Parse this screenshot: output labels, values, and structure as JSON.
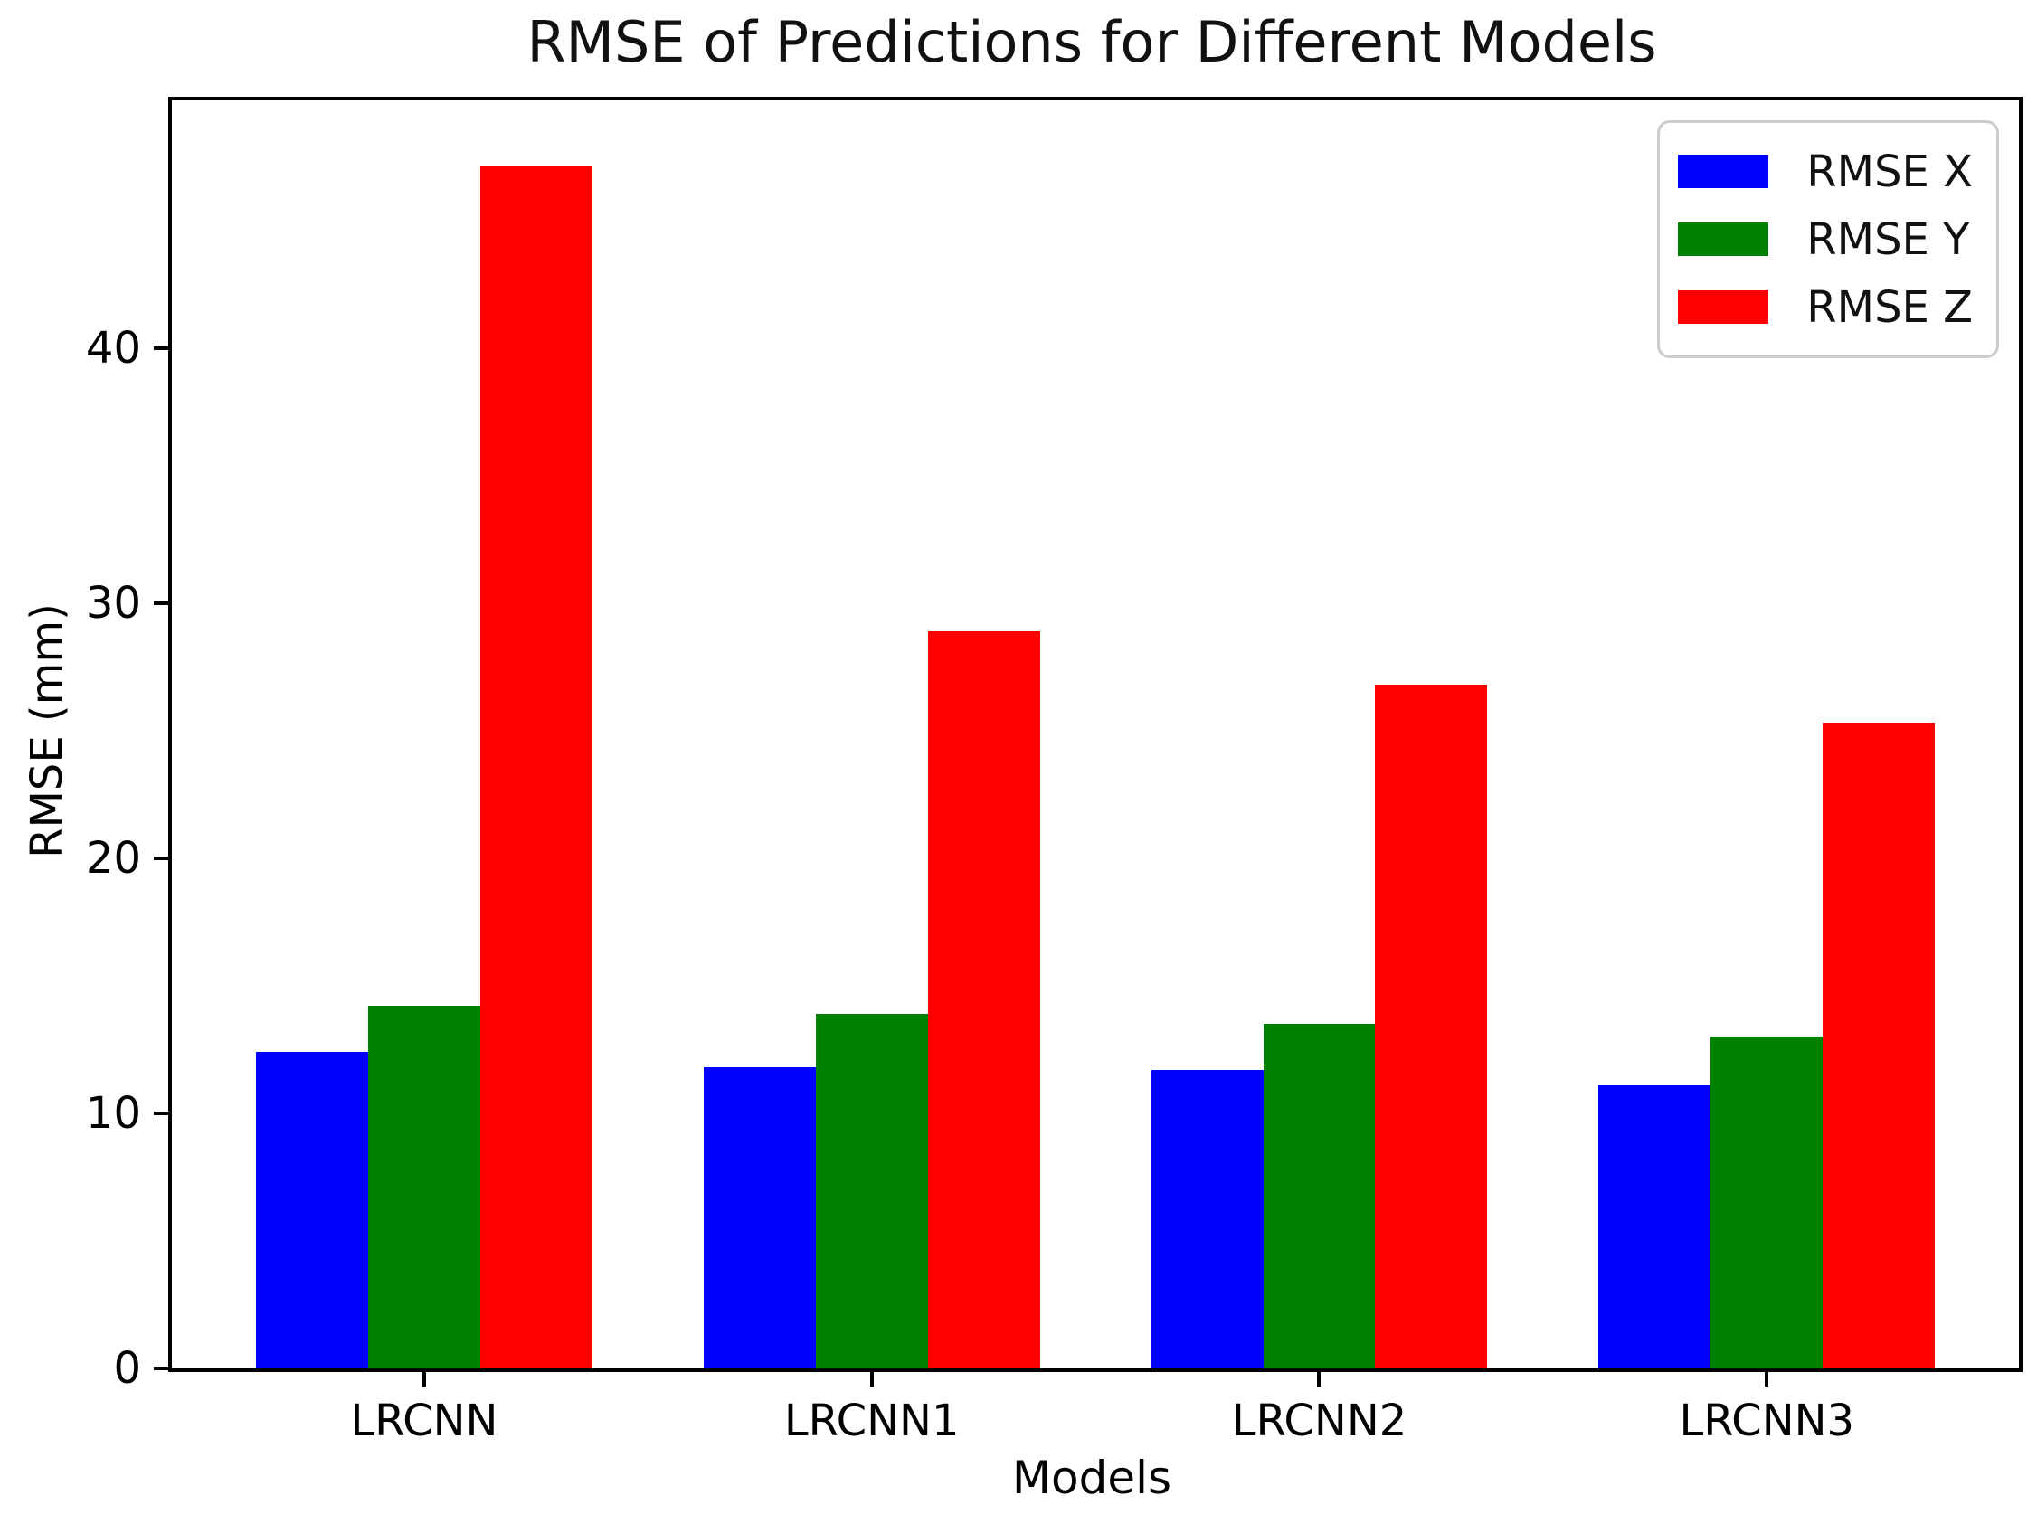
{
  "chart_data": {
    "type": "bar",
    "title": "RMSE of Predictions for Different Models",
    "xlabel": "Models",
    "ylabel": "RMSE (mm)",
    "categories": [
      "LRCNN",
      "LRCNN1",
      "LRCNN2",
      "LRCNN3"
    ],
    "series": [
      {
        "name": "RMSE X",
        "color": "#0000ff",
        "values": [
          12.4,
          11.8,
          11.7,
          11.1
        ]
      },
      {
        "name": "RMSE Y",
        "color": "#008000",
        "values": [
          14.2,
          13.9,
          13.5,
          13.0
        ]
      },
      {
        "name": "RMSE Z",
        "color": "#ff0000",
        "values": [
          47.1,
          28.9,
          26.8,
          25.3
        ]
      }
    ],
    "yticks": [
      0,
      10,
      20,
      30,
      40
    ],
    "ylim": [
      0,
      49.7
    ],
    "legend_position": "upper right",
    "grid": false
  }
}
